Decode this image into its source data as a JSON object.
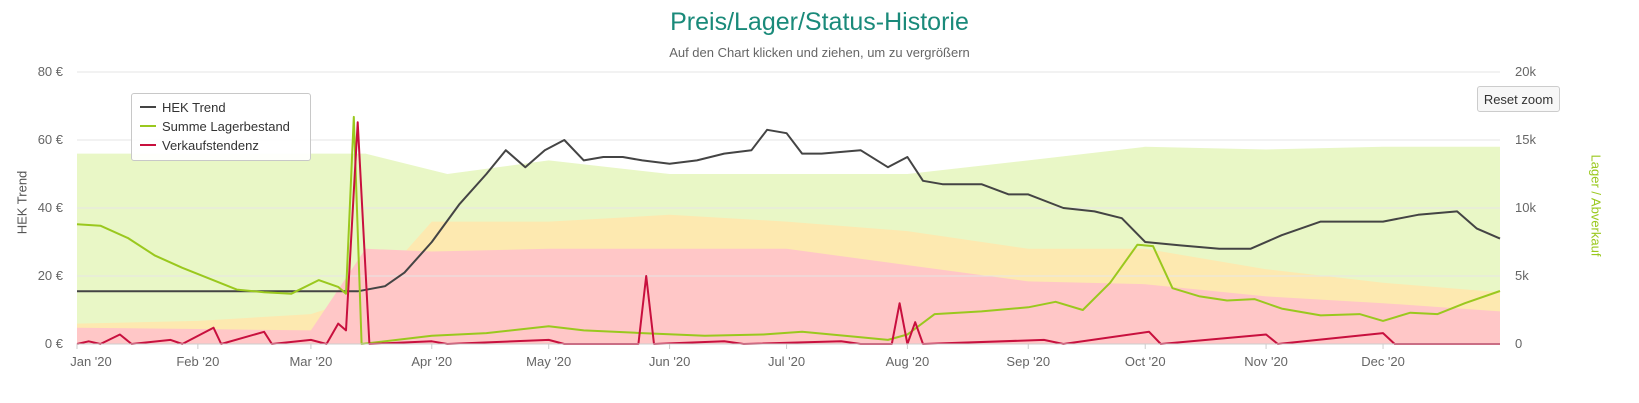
{
  "chart_data": {
    "type": "area",
    "title": "Preis/Lager/Status-Historie",
    "subtitle": "Auf den Chart klicken und ziehen, um zu vergrößern",
    "x_range": [
      "2020-01-01",
      "2020-12-31"
    ],
    "x_ticks": [
      "Jan '20",
      "Feb '20",
      "Mar '20",
      "Apr '20",
      "May '20",
      "Jun '20",
      "Jul '20",
      "Aug '20",
      "Sep '20",
      "Oct '20",
      "Nov '20",
      "Dec '20"
    ],
    "y_left": {
      "label": "HEK Trend",
      "ylim": [
        0,
        80
      ],
      "ticks": [
        "0 €",
        "20 €",
        "40 €",
        "60 €",
        "80 €"
      ]
    },
    "y_right": {
      "label": "Lager / Abverkauf",
      "ylim": [
        0,
        20000
      ],
      "ticks": [
        "0",
        "5k",
        "10k",
        "15k",
        "20k"
      ]
    },
    "grid": true,
    "legend_position": "top-left",
    "background_bands": [
      {
        "color": "#e9f7c6",
        "values": [
          [
            "2020-01-01",
            14000
          ],
          [
            "2020-03-15",
            14000
          ],
          [
            "2020-04-05",
            12500
          ],
          [
            "2020-05-01",
            13500
          ],
          [
            "2020-06-01",
            12500
          ],
          [
            "2020-07-01",
            12500
          ],
          [
            "2020-08-01",
            12500
          ],
          [
            "2020-09-01",
            13500
          ],
          [
            "2020-10-01",
            14500
          ],
          [
            "2020-11-01",
            14300
          ],
          [
            "2020-12-01",
            14500
          ],
          [
            "2020-12-31",
            14500
          ]
        ]
      },
      {
        "color": "#fde9b0",
        "values": [
          [
            "2020-01-01",
            1500
          ],
          [
            "2020-02-01",
            1700
          ],
          [
            "2020-03-01",
            2200
          ],
          [
            "2020-03-15",
            3500
          ],
          [
            "2020-04-01",
            9000
          ],
          [
            "2020-05-01",
            9000
          ],
          [
            "2020-06-01",
            9500
          ],
          [
            "2020-07-01",
            9000
          ],
          [
            "2020-08-01",
            8300
          ],
          [
            "2020-09-01",
            7000
          ],
          [
            "2020-10-01",
            7000
          ],
          [
            "2020-11-01",
            5500
          ],
          [
            "2020-12-01",
            4500
          ],
          [
            "2020-12-31",
            3800
          ]
        ]
      },
      {
        "color": "#ffc7c7",
        "values": [
          [
            "2020-01-01",
            1200
          ],
          [
            "2020-02-01",
            1100
          ],
          [
            "2020-03-01",
            1000
          ],
          [
            "2020-03-15",
            7000
          ],
          [
            "2020-04-01",
            6800
          ],
          [
            "2020-05-01",
            7000
          ],
          [
            "2020-06-01",
            7000
          ],
          [
            "2020-07-01",
            7000
          ],
          [
            "2020-08-01",
            5800
          ],
          [
            "2020-09-01",
            4600
          ],
          [
            "2020-10-01",
            4400
          ],
          [
            "2020-11-01",
            3500
          ],
          [
            "2020-12-01",
            3000
          ],
          [
            "2020-12-31",
            2400
          ]
        ]
      }
    ],
    "series": [
      {
        "name": "HEK Trend",
        "color": "#444444",
        "axis": "left",
        "values": [
          [
            "2020-01-01",
            15.5
          ],
          [
            "2020-03-13",
            15.5
          ],
          [
            "2020-03-20",
            17
          ],
          [
            "2020-03-25",
            21
          ],
          [
            "2020-04-01",
            30
          ],
          [
            "2020-04-08",
            41
          ],
          [
            "2020-04-15",
            50
          ],
          [
            "2020-04-20",
            57
          ],
          [
            "2020-04-25",
            52
          ],
          [
            "2020-04-30",
            57
          ],
          [
            "2020-05-05",
            60
          ],
          [
            "2020-05-10",
            54
          ],
          [
            "2020-05-15",
            55
          ],
          [
            "2020-05-20",
            55
          ],
          [
            "2020-05-25",
            54
          ],
          [
            "2020-06-01",
            53
          ],
          [
            "2020-06-08",
            54
          ],
          [
            "2020-06-15",
            56
          ],
          [
            "2020-06-22",
            57
          ],
          [
            "2020-06-26",
            63
          ],
          [
            "2020-07-01",
            62
          ],
          [
            "2020-07-05",
            56
          ],
          [
            "2020-07-10",
            56
          ],
          [
            "2020-07-20",
            57
          ],
          [
            "2020-07-27",
            52
          ],
          [
            "2020-08-01",
            55
          ],
          [
            "2020-08-05",
            48
          ],
          [
            "2020-08-10",
            47
          ],
          [
            "2020-08-20",
            47
          ],
          [
            "2020-08-27",
            44
          ],
          [
            "2020-09-01",
            44
          ],
          [
            "2020-09-10",
            40
          ],
          [
            "2020-09-18",
            39
          ],
          [
            "2020-09-25",
            37
          ],
          [
            "2020-10-01",
            30
          ],
          [
            "2020-10-10",
            29
          ],
          [
            "2020-10-20",
            28
          ],
          [
            "2020-10-28",
            28
          ],
          [
            "2020-11-05",
            32
          ],
          [
            "2020-11-15",
            36
          ],
          [
            "2020-11-25",
            36
          ],
          [
            "2020-12-01",
            36
          ],
          [
            "2020-12-10",
            38
          ],
          [
            "2020-12-20",
            39
          ],
          [
            "2020-12-25",
            34
          ],
          [
            "2020-12-31",
            31
          ]
        ]
      },
      {
        "name": "Summe Lagerbestand",
        "color": "#9ac81e",
        "axis": "right",
        "values": [
          [
            "2020-01-01",
            8800
          ],
          [
            "2020-01-07",
            8700
          ],
          [
            "2020-01-14",
            7800
          ],
          [
            "2020-01-21",
            6500
          ],
          [
            "2020-01-28",
            5600
          ],
          [
            "2020-02-04",
            4800
          ],
          [
            "2020-02-11",
            4000
          ],
          [
            "2020-02-18",
            3800
          ],
          [
            "2020-02-25",
            3700
          ],
          [
            "2020-03-03",
            4700
          ],
          [
            "2020-03-08",
            4200
          ],
          [
            "2020-03-10",
            3700
          ],
          [
            "2020-03-12",
            16700
          ],
          [
            "2020-03-14",
            0
          ],
          [
            "2020-04-01",
            600
          ],
          [
            "2020-04-15",
            800
          ],
          [
            "2020-05-01",
            1300
          ],
          [
            "2020-05-10",
            1000
          ],
          [
            "2020-05-25",
            800
          ],
          [
            "2020-06-10",
            600
          ],
          [
            "2020-06-25",
            700
          ],
          [
            "2020-07-05",
            900
          ],
          [
            "2020-07-20",
            500
          ],
          [
            "2020-07-27",
            300
          ],
          [
            "2020-08-01",
            700
          ],
          [
            "2020-08-08",
            2200
          ],
          [
            "2020-08-20",
            2400
          ],
          [
            "2020-09-01",
            2700
          ],
          [
            "2020-09-08",
            3100
          ],
          [
            "2020-09-15",
            2500
          ],
          [
            "2020-09-22",
            4500
          ],
          [
            "2020-09-29",
            7300
          ],
          [
            "2020-10-03",
            7200
          ],
          [
            "2020-10-08",
            4100
          ],
          [
            "2020-10-15",
            3500
          ],
          [
            "2020-10-22",
            3200
          ],
          [
            "2020-10-29",
            3300
          ],
          [
            "2020-11-05",
            2600
          ],
          [
            "2020-11-15",
            2100
          ],
          [
            "2020-11-25",
            2200
          ],
          [
            "2020-12-01",
            1700
          ],
          [
            "2020-12-08",
            2300
          ],
          [
            "2020-12-15",
            2200
          ],
          [
            "2020-12-22",
            3000
          ],
          [
            "2020-12-31",
            3900
          ]
        ]
      },
      {
        "name": "Verkaufstendenz",
        "color": "#c8103e",
        "axis": "right",
        "values": [
          [
            "2020-01-01",
            0
          ],
          [
            "2020-01-04",
            200
          ],
          [
            "2020-01-07",
            0
          ],
          [
            "2020-01-12",
            700
          ],
          [
            "2020-01-15",
            0
          ],
          [
            "2020-01-25",
            300
          ],
          [
            "2020-01-28",
            0
          ],
          [
            "2020-02-05",
            1200
          ],
          [
            "2020-02-07",
            0
          ],
          [
            "2020-02-18",
            900
          ],
          [
            "2020-02-20",
            0
          ],
          [
            "2020-03-01",
            300
          ],
          [
            "2020-03-05",
            0
          ],
          [
            "2020-03-08",
            1500
          ],
          [
            "2020-03-10",
            1000
          ],
          [
            "2020-03-13",
            16300
          ],
          [
            "2020-03-16",
            0
          ],
          [
            "2020-04-01",
            200
          ],
          [
            "2020-04-05",
            0
          ],
          [
            "2020-05-01",
            300
          ],
          [
            "2020-05-05",
            0
          ],
          [
            "2020-05-24",
            0
          ],
          [
            "2020-05-26",
            5000
          ],
          [
            "2020-05-28",
            0
          ],
          [
            "2020-06-15",
            200
          ],
          [
            "2020-06-20",
            0
          ],
          [
            "2020-07-15",
            200
          ],
          [
            "2020-07-20",
            0
          ],
          [
            "2020-07-28",
            0
          ],
          [
            "2020-07-30",
            3000
          ],
          [
            "2020-08-01",
            0
          ],
          [
            "2020-08-03",
            1600
          ],
          [
            "2020-08-05",
            0
          ],
          [
            "2020-09-05",
            300
          ],
          [
            "2020-09-10",
            0
          ],
          [
            "2020-10-02",
            900
          ],
          [
            "2020-10-05",
            0
          ],
          [
            "2020-11-01",
            700
          ],
          [
            "2020-11-04",
            0
          ],
          [
            "2020-12-01",
            800
          ],
          [
            "2020-12-04",
            0
          ],
          [
            "2020-12-31",
            0
          ]
        ]
      }
    ]
  },
  "ui": {
    "reset_zoom_label": "Reset zoom"
  }
}
